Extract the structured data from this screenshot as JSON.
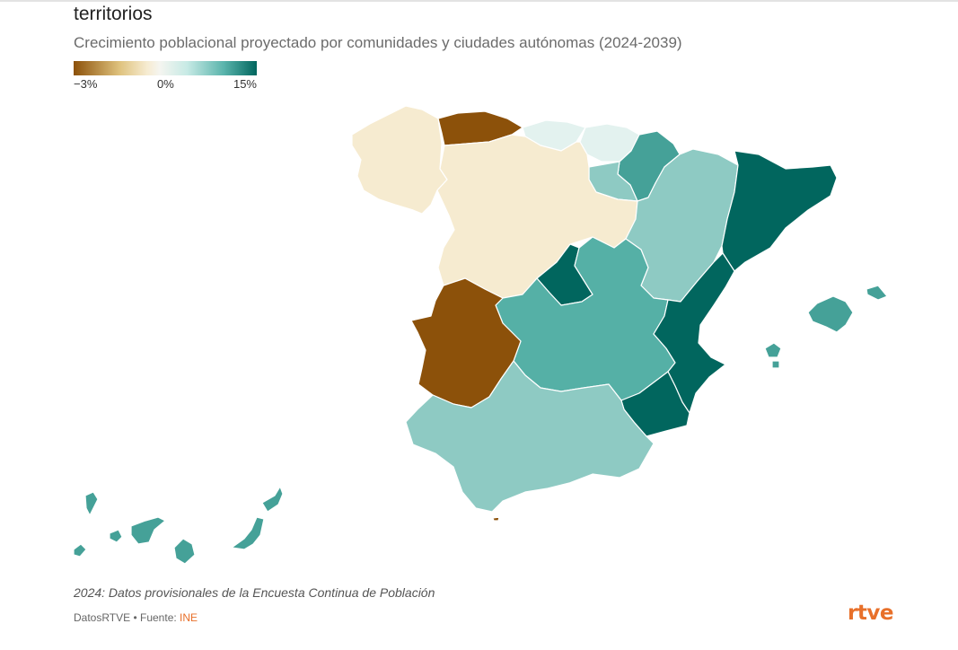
{
  "title": "territorios",
  "subtitle": "Crecimiento poblacional proyectado por comunidades y ciudades autónomas (2024-2039)",
  "legend": {
    "min_label": "−3%",
    "mid_label": "0%",
    "max_label": "15%"
  },
  "colors": {
    "dark_brown": "#8c510a",
    "cream": "#f6ebd0",
    "pale": "#e3f2ef",
    "light_teal": "#8ecac3",
    "mid_teal": "#55b0a6",
    "teal2": "#45a198",
    "dark_teal": "#01665e",
    "border": "#ffffff"
  },
  "regions": [
    {
      "name": "Galicia",
      "class": "cream"
    },
    {
      "name": "Asturias",
      "class": "dark_brown"
    },
    {
      "name": "Cantabria",
      "class": "pale"
    },
    {
      "name": "País Vasco",
      "class": "pale"
    },
    {
      "name": "Navarra",
      "class": "teal2"
    },
    {
      "name": "La Rioja",
      "class": "light_teal"
    },
    {
      "name": "Castilla y León",
      "class": "cream"
    },
    {
      "name": "Aragón",
      "class": "light_teal"
    },
    {
      "name": "Cataluña",
      "class": "dark_teal"
    },
    {
      "name": "Madrid",
      "class": "dark_teal"
    },
    {
      "name": "Castilla-La Mancha",
      "class": "mid_teal"
    },
    {
      "name": "Extremadura",
      "class": "dark_brown"
    },
    {
      "name": "Comunitat Valenciana",
      "class": "dark_teal"
    },
    {
      "name": "Región de Murcia",
      "class": "dark_teal"
    },
    {
      "name": "Andalucía",
      "class": "light_teal"
    },
    {
      "name": "Illes Balears",
      "class": "teal2"
    },
    {
      "name": "Canarias",
      "class": "teal2"
    },
    {
      "name": "Ceuta",
      "class": "dark_brown"
    }
  ],
  "note": "2024: Datos provisionales de la Encuesta Continua de Población",
  "footer": {
    "credit": "DatosRTVE • Fuente: ",
    "source": "INE"
  },
  "logo": "rtve"
}
